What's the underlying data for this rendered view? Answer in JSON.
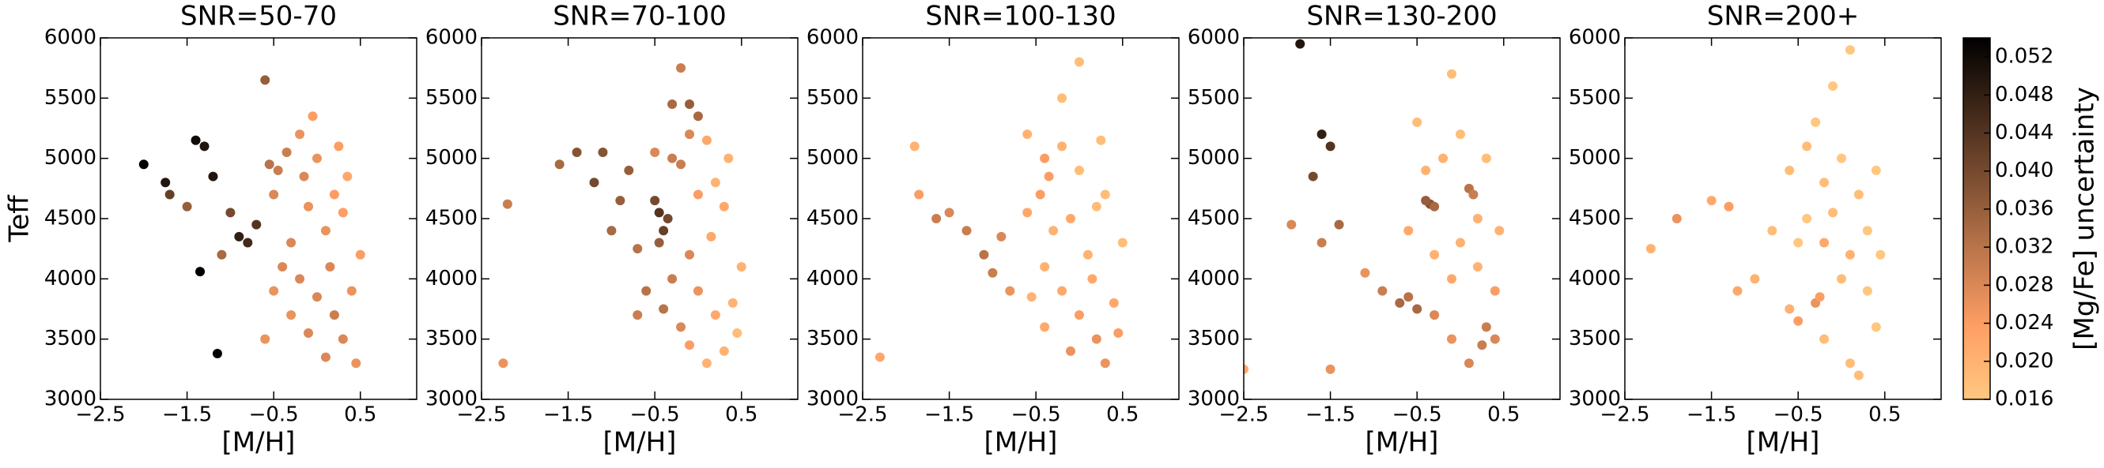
{
  "chart_data": [
    {
      "type": "scatter",
      "title": "SNR=50-70",
      "xlabel": "[M/H]",
      "ylabel": "Teff",
      "xlim": [
        -2.5,
        1.15
      ],
      "ylim": [
        3000,
        6000
      ],
      "xticks": [
        {
          "value": -2.5,
          "label": "−2.5"
        },
        {
          "value": -1.5,
          "label": "−1.5"
        },
        {
          "value": -0.5,
          "label": "−0.5"
        },
        0.5
      ],
      "yticks": [
        3000,
        3500,
        4000,
        4500,
        5000,
        5500,
        6000
      ],
      "x": [
        -2.0,
        -1.75,
        -1.7,
        -1.4,
        -1.3,
        -1.2,
        -1.5,
        -1.0,
        -0.9,
        -0.8,
        -0.7,
        -1.35,
        -1.15,
        -1.1,
        -0.6,
        -0.55,
        -0.45,
        -0.35,
        -0.5,
        -0.2,
        0.0,
        0.2,
        0.3,
        0.1,
        -0.1,
        -0.3,
        -0.4,
        -0.2,
        0.0,
        0.2,
        0.3,
        0.4,
        0.1,
        -0.1,
        -0.3,
        -0.5,
        0.5,
        0.45,
        0.15,
        -0.05,
        0.25,
        -0.6,
        -0.15,
        0.35
      ],
      "y": [
        4950,
        4800,
        4700,
        5150,
        5100,
        4850,
        4600,
        4550,
        4350,
        4300,
        4450,
        4060,
        3380,
        4200,
        5650,
        4950,
        4900,
        5050,
        4700,
        5200,
        5000,
        4700,
        4550,
        4400,
        4600,
        4300,
        4100,
        4000,
        3850,
        3700,
        3500,
        3900,
        3350,
        3550,
        3700,
        3900,
        4200,
        3300,
        4100,
        5350,
        5100,
        3500,
        4850,
        4850
      ],
      "c": [
        0.054,
        0.05,
        0.042,
        0.052,
        0.05,
        0.05,
        0.036,
        0.04,
        0.048,
        0.046,
        0.044,
        0.054,
        0.054,
        0.034,
        0.036,
        0.032,
        0.03,
        0.03,
        0.028,
        0.026,
        0.026,
        0.024,
        0.024,
        0.026,
        0.026,
        0.028,
        0.028,
        0.028,
        0.028,
        0.03,
        0.028,
        0.026,
        0.028,
        0.028,
        0.026,
        0.026,
        0.024,
        0.026,
        0.028,
        0.024,
        0.024,
        0.026,
        0.028,
        0.022
      ]
    },
    {
      "type": "scatter",
      "title": "SNR=70-100",
      "xlabel": "[M/H]",
      "xlim": [
        -2.5,
        1.15
      ],
      "ylim": [
        3000,
        6000
      ],
      "xticks": [
        {
          "value": -2.5,
          "label": "−2.5"
        },
        {
          "value": -1.5,
          "label": "−1.5"
        },
        {
          "value": -0.5,
          "label": "−0.5"
        },
        0.5
      ],
      "yticks": [
        3000,
        3500,
        4000,
        4500,
        5000,
        5500,
        6000
      ],
      "x": [
        -2.2,
        -2.25,
        -1.6,
        -1.4,
        -1.2,
        -1.1,
        -0.9,
        -1.0,
        -0.8,
        -0.7,
        -0.6,
        -0.7,
        -0.45,
        -0.4,
        -0.5,
        -0.35,
        -0.45,
        -0.3,
        -0.2,
        -0.5,
        -0.1,
        -0.3,
        -0.1,
        0.0,
        -0.2,
        0.1,
        0.2,
        0.3,
        0.0,
        -0.1,
        -0.3,
        -0.4,
        -0.2,
        0.0,
        0.2,
        0.3,
        0.4,
        0.1,
        0.5,
        0.45,
        -0.1,
        0.15,
        0.35
      ],
      "y": [
        4620,
        3300,
        4950,
        5050,
        4800,
        5050,
        4650,
        4400,
        4900,
        4250,
        3900,
        3700,
        4550,
        4400,
        4650,
        4500,
        4300,
        5000,
        4950,
        5050,
        5200,
        5450,
        5450,
        5350,
        5750,
        5150,
        4800,
        4600,
        4700,
        4200,
        4000,
        3750,
        3600,
        3900,
        3700,
        3400,
        3800,
        3300,
        4100,
        3550,
        3450,
        4350,
        5000
      ],
      "c": [
        0.03,
        0.026,
        0.034,
        0.038,
        0.04,
        0.038,
        0.036,
        0.034,
        0.036,
        0.032,
        0.032,
        0.03,
        0.044,
        0.042,
        0.04,
        0.04,
        0.036,
        0.03,
        0.03,
        0.028,
        0.028,
        0.034,
        0.036,
        0.034,
        0.03,
        0.022,
        0.02,
        0.022,
        0.024,
        0.028,
        0.03,
        0.032,
        0.028,
        0.026,
        0.022,
        0.02,
        0.02,
        0.02,
        0.02,
        0.018,
        0.024,
        0.022,
        0.02
      ]
    },
    {
      "type": "scatter",
      "title": "SNR=100-130",
      "xlabel": "[M/H]",
      "xlim": [
        -2.5,
        1.15
      ],
      "ylim": [
        3000,
        6000
      ],
      "xticks": [
        {
          "value": -2.5,
          "label": "−2.5"
        },
        {
          "value": -1.5,
          "label": "−1.5"
        },
        {
          "value": -0.5,
          "label": "−0.5"
        },
        0.5
      ],
      "yticks": [
        3000,
        3500,
        4000,
        4500,
        5000,
        5500,
        6000
      ],
      "x": [
        -2.3,
        -1.9,
        -1.85,
        -1.65,
        -1.5,
        -1.3,
        -1.1,
        -1.0,
        -0.9,
        -0.8,
        -0.6,
        -0.4,
        -0.35,
        -0.2,
        0.0,
        0.2,
        -0.1,
        -0.45,
        -0.3,
        0.1,
        0.3,
        -0.2,
        0.0,
        -0.4,
        -0.2,
        0.0,
        0.2,
        0.3,
        0.4,
        -0.4,
        -0.1,
        0.15,
        0.5,
        0.45,
        -0.55,
        0.25,
        -0.6
      ],
      "y": [
        3350,
        5100,
        4700,
        4500,
        4550,
        4400,
        4200,
        4050,
        4350,
        3900,
        4550,
        5000,
        4850,
        5100,
        4900,
        4600,
        4500,
        4700,
        4400,
        4200,
        4700,
        5500,
        5800,
        4100,
        3900,
        3700,
        3500,
        3300,
        3800,
        3600,
        3400,
        4000,
        4300,
        3550,
        3850,
        5150,
        5200
      ],
      "c": [
        0.022,
        0.02,
        0.024,
        0.03,
        0.028,
        0.03,
        0.032,
        0.03,
        0.028,
        0.026,
        0.022,
        0.024,
        0.024,
        0.02,
        0.018,
        0.018,
        0.022,
        0.024,
        0.02,
        0.02,
        0.018,
        0.018,
        0.018,
        0.02,
        0.022,
        0.024,
        0.026,
        0.026,
        0.022,
        0.022,
        0.026,
        0.022,
        0.018,
        0.024,
        0.02,
        0.018,
        0.02
      ]
    },
    {
      "type": "scatter",
      "title": "SNR=130-200",
      "xlabel": "[M/H]",
      "xlim": [
        -2.5,
        1.15
      ],
      "ylim": [
        3000,
        6000
      ],
      "xticks": [
        {
          "value": -2.5,
          "label": "−2.5"
        },
        {
          "value": -1.5,
          "label": "−1.5"
        },
        {
          "value": -0.5,
          "label": "−0.5"
        },
        0.5
      ],
      "yticks": [
        3000,
        3500,
        4000,
        4500,
        5000,
        5500,
        6000
      ],
      "x": [
        -2.5,
        -1.95,
        -1.85,
        -1.6,
        -1.5,
        -1.7,
        -1.4,
        -1.6,
        -1.5,
        -1.1,
        -0.9,
        -0.7,
        -0.5,
        -0.6,
        -0.3,
        -0.35,
        -0.4,
        -0.3,
        0.1,
        0.15,
        -0.2,
        0.0,
        -0.4,
        0.2,
        0.0,
        -0.3,
        -0.1,
        0.2,
        0.3,
        0.25,
        0.1,
        0.4,
        -0.1,
        0.4,
        0.45,
        -0.5,
        -0.1,
        0.3,
        -0.6
      ],
      "y": [
        3250,
        4450,
        5950,
        5200,
        5100,
        4850,
        4450,
        4300,
        3250,
        4050,
        3900,
        3800,
        3750,
        3850,
        3700,
        4620,
        4650,
        4600,
        4750,
        4700,
        5000,
        5200,
        4900,
        4500,
        4300,
        4200,
        4000,
        4100,
        3600,
        3450,
        3300,
        3500,
        3500,
        3900,
        4400,
        5300,
        5700,
        5000,
        4400
      ],
      "c": [
        0.022,
        0.028,
        0.05,
        0.048,
        0.044,
        0.04,
        0.034,
        0.03,
        0.026,
        0.026,
        0.03,
        0.034,
        0.034,
        0.032,
        0.028,
        0.038,
        0.036,
        0.034,
        0.032,
        0.03,
        0.02,
        0.018,
        0.02,
        0.02,
        0.02,
        0.02,
        0.022,
        0.02,
        0.03,
        0.03,
        0.028,
        0.028,
        0.026,
        0.024,
        0.02,
        0.018,
        0.018,
        0.018,
        0.022
      ]
    },
    {
      "type": "scatter",
      "title": "SNR=200+",
      "xlabel": "[M/H]",
      "xlim": [
        -2.5,
        1.15
      ],
      "ylim": [
        3000,
        6000
      ],
      "xticks": [
        {
          "value": -2.5,
          "label": "−2.5"
        },
        {
          "value": -1.5,
          "label": "−1.5"
        },
        {
          "value": -0.5,
          "label": "−0.5"
        },
        0.5
      ],
      "yticks": [
        3000,
        3500,
        4000,
        4500,
        5000,
        5500,
        6000
      ],
      "x": [
        -2.2,
        -1.9,
        -1.5,
        -1.3,
        -1.2,
        -1.0,
        -0.8,
        -0.6,
        -0.5,
        -0.3,
        -0.25,
        -0.2,
        0.1,
        -0.2,
        0.0,
        -0.4,
        0.2,
        -0.1,
        0.3,
        -0.4,
        0.0,
        0.3,
        -0.2,
        0.1,
        0.4,
        0.2,
        0.4,
        -0.5,
        -0.3,
        0.1,
        -0.1,
        0.45,
        -0.6
      ],
      "y": [
        4250,
        4500,
        4650,
        4600,
        3900,
        4000,
        4400,
        3750,
        3650,
        3800,
        3850,
        4300,
        4200,
        4800,
        5000,
        5100,
        4700,
        4550,
        4400,
        4500,
        4000,
        3900,
        3500,
        3300,
        3600,
        3200,
        4900,
        4300,
        5300,
        5900,
        5600,
        4200,
        4900
      ],
      "c": [
        0.02,
        0.026,
        0.022,
        0.024,
        0.022,
        0.02,
        0.018,
        0.02,
        0.024,
        0.026,
        0.024,
        0.022,
        0.02,
        0.018,
        0.016,
        0.018,
        0.018,
        0.018,
        0.016,
        0.016,
        0.018,
        0.016,
        0.018,
        0.018,
        0.016,
        0.018,
        0.016,
        0.016,
        0.016,
        0.016,
        0.016,
        0.016,
        0.018
      ],
      "colorbar": {
        "label": "[Mg/Fe] uncertainty",
        "colormap": "copper_r",
        "lim": [
          0.016,
          0.054
        ],
        "ticks": [
          0.016,
          {
            "value": 0.02,
            "label": "0.020"
          },
          0.024,
          0.028,
          0.032,
          0.036,
          {
            "value": 0.04,
            "label": "0.040"
          },
          0.044,
          0.048,
          0.052
        ]
      }
    }
  ]
}
